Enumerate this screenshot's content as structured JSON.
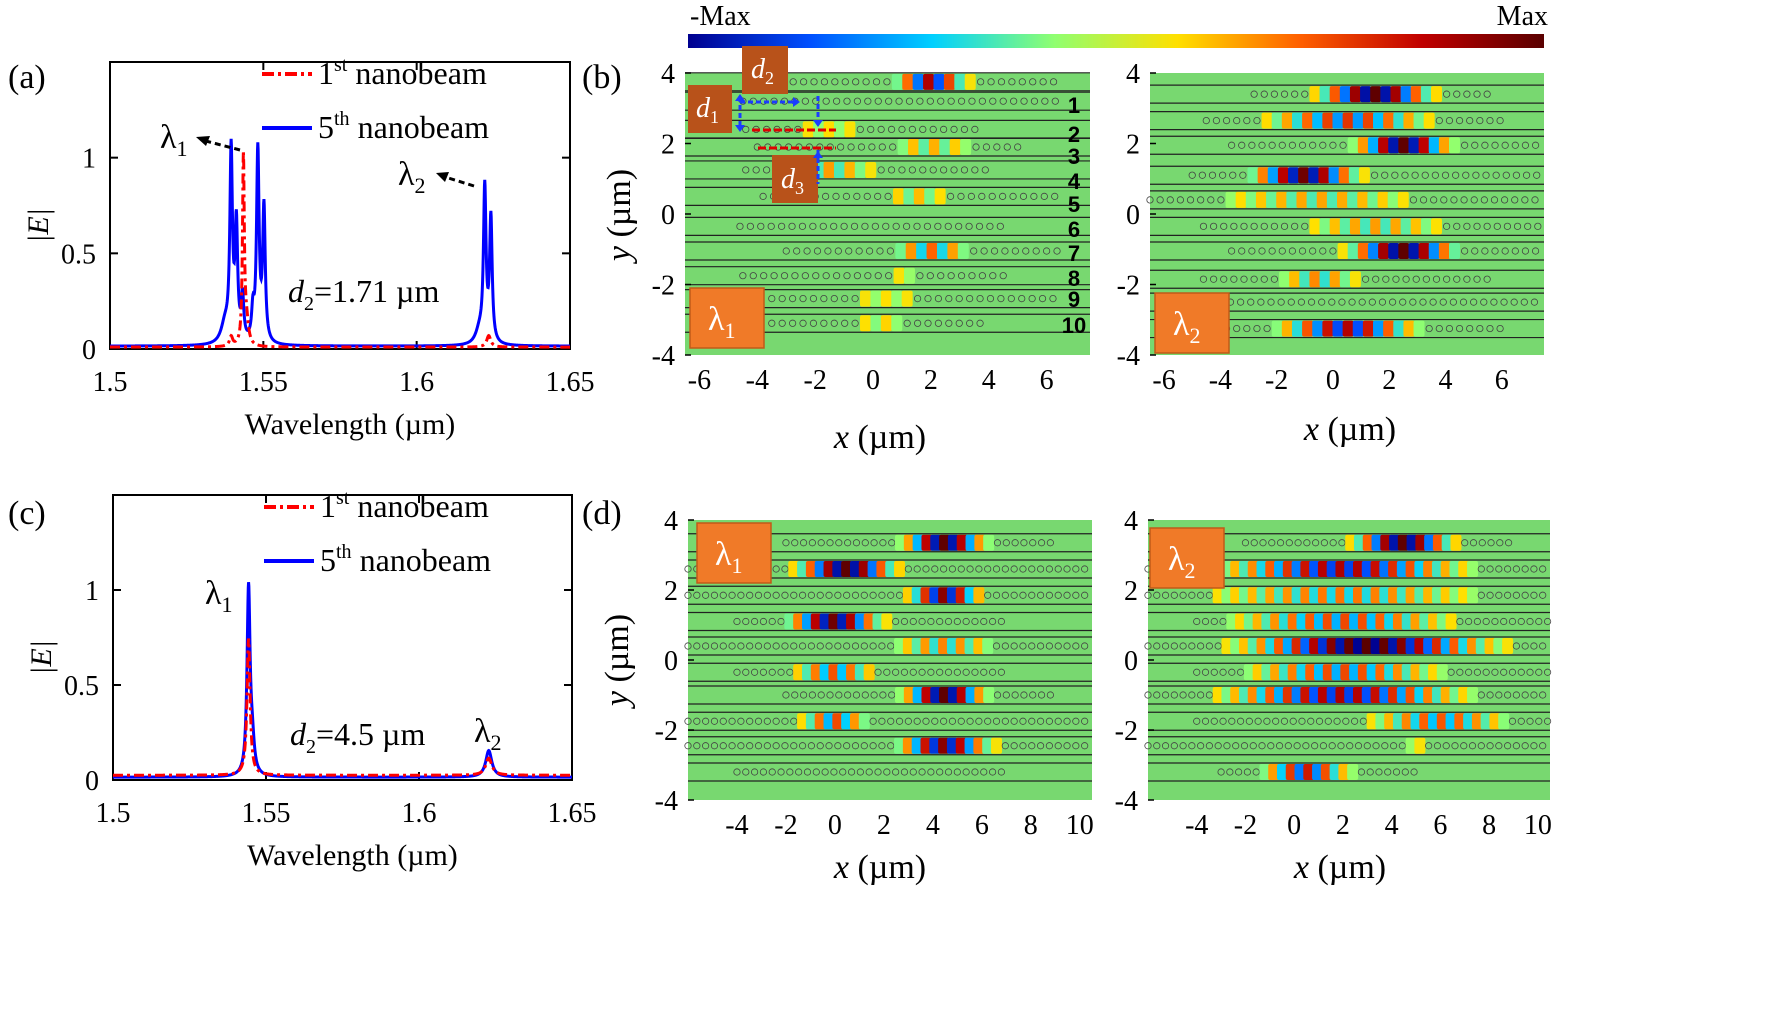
{
  "figure": {
    "colorbar": {
      "min_label": "-Max",
      "max_label": "Max",
      "colors": [
        "#00008f",
        "#0050ff",
        "#00d0ff",
        "#90ff70",
        "#ffe000",
        "#ff6000",
        "#c00000",
        "#5a0000"
      ]
    },
    "colors": {
      "red": "#ff0000",
      "blue": "#0000ff",
      "field_bg": "#78d870",
      "label_box": "#f07a28",
      "label_box_dark": "#b8521a"
    },
    "panels": {
      "a": {
        "label": "(a)"
      },
      "b": {
        "label": "(b)",
        "x_label": "x",
        "x_unit": "(µm)",
        "y_label": "y",
        "y_unit": "(µm)",
        "nanobeam_numbers": [
          "1",
          "2",
          "3",
          "4",
          "5",
          "6",
          "7",
          "8",
          "9",
          "10"
        ],
        "d1": "d",
        "d1_sub": "1",
        "d2": "d",
        "d2_sub": "2",
        "d3": "d",
        "d3_sub": "3"
      },
      "c": {
        "label": "(c)"
      },
      "d": {
        "label": "(d)",
        "x_label": "x",
        "x_unit": "(µm)",
        "y_label": "y",
        "y_unit": "(µm)"
      }
    },
    "lambda": {
      "symbol": "λ",
      "sub1": "1",
      "sub2": "2"
    }
  },
  "chart_data": [
    {
      "id": "a",
      "type": "line",
      "xlabel": "Wavelength (µm)",
      "ylabel": "|E|",
      "xlim": [
        1.5,
        1.65
      ],
      "ylim": [
        0,
        1.5
      ],
      "xticks": [
        1.5,
        1.55,
        1.6,
        1.65
      ],
      "xtick_labels": [
        "1.5",
        "1.55",
        "1.6",
        "1.65"
      ],
      "yticks": [
        0,
        0.5,
        1
      ],
      "ytick_labels": [
        "0",
        "0.5",
        "1"
      ],
      "legend": [
        {
          "pre": "1",
          "sup": "st",
          "post": " nanobeam",
          "color": "red",
          "style": "dash-dot"
        },
        {
          "pre": "5",
          "sup": "th",
          "post": " nanobeam",
          "color": "blue",
          "style": "solid"
        }
      ],
      "annotation": {
        "var": "d",
        "sub": "2",
        "text": "=1.71 µm"
      },
      "peak_labels": [
        "λ1",
        "λ2"
      ],
      "baseline": {
        "red": 0.01,
        "blue": 0.015
      },
      "series": [
        {
          "name": "1st nanobeam",
          "peaks": [
            {
              "x": 1.5395,
              "h": 0.05,
              "w": 0.0006
            },
            {
              "x": 1.5435,
              "h": 0.98,
              "w": 0.00035
            },
            {
              "x": 1.5445,
              "h": 0.12,
              "w": 0.0008
            },
            {
              "x": 1.6235,
              "h": 0.06,
              "w": 0.0008
            }
          ]
        },
        {
          "name": "5th nanobeam",
          "peaks": [
            {
              "x": 1.5395,
              "h": 0.99,
              "w": 0.0005
            },
            {
              "x": 1.5412,
              "h": 0.6,
              "w": 0.0005
            },
            {
              "x": 1.5432,
              "h": 0.23,
              "w": 0.0005
            },
            {
              "x": 1.5482,
              "h": 1.0,
              "w": 0.0005
            },
            {
              "x": 1.5502,
              "h": 0.7,
              "w": 0.0005
            },
            {
              "x": 1.5466,
              "h": 0.15,
              "w": 0.0005
            },
            {
              "x": 1.5375,
              "h": 0.1,
              "w": 0.0015
            },
            {
              "x": 1.6222,
              "h": 0.8,
              "w": 0.0005
            },
            {
              "x": 1.6242,
              "h": 0.65,
              "w": 0.0005
            },
            {
              "x": 1.6205,
              "h": 0.07,
              "w": 0.0015
            }
          ]
        }
      ]
    },
    {
      "id": "c",
      "type": "line",
      "xlabel": "Wavelength (µm)",
      "ylabel": "|E|",
      "xlim": [
        1.5,
        1.65
      ],
      "ylim": [
        0,
        1.5
      ],
      "xticks": [
        1.5,
        1.55,
        1.6,
        1.65
      ],
      "xtick_labels": [
        "1.5",
        "1.55",
        "1.6",
        "1.65"
      ],
      "yticks": [
        0,
        0.5,
        1
      ],
      "ytick_labels": [
        "0",
        "0.5",
        "1"
      ],
      "legend": [
        {
          "pre": "1",
          "sup": "st",
          "post": " nanobeam",
          "color": "red",
          "style": "dash-dot"
        },
        {
          "pre": "5",
          "sup": "th",
          "post": " nanobeam",
          "color": "blue",
          "style": "solid"
        }
      ],
      "annotation": {
        "var": "d",
        "sub": "2",
        "text": "=4.5 µm"
      },
      "peak_labels": [
        "λ1",
        "λ2"
      ],
      "baseline": {
        "red": 0.025,
        "blue": 0.015
      },
      "series": [
        {
          "name": "1st nanobeam",
          "peaks": [
            {
              "x": 1.5443,
              "h": 0.72,
              "w": 0.0006
            },
            {
              "x": 1.6228,
              "h": 0.09,
              "w": 0.0012
            }
          ]
        },
        {
          "name": "5th nanobeam",
          "peaks": [
            {
              "x": 1.5443,
              "h": 0.98,
              "w": 0.0006
            },
            {
              "x": 1.5455,
              "h": 0.15,
              "w": 0.0008
            },
            {
              "x": 1.6228,
              "h": 0.14,
              "w": 0.0012
            }
          ]
        }
      ]
    },
    {
      "id": "b",
      "type": "heatmap",
      "xlabel": "x (µm)",
      "ylabel": "y (µm)",
      "maps": [
        {
          "lambda": "λ1",
          "xlim": [
            -6.5,
            7.5
          ],
          "ylim": [
            -4,
            4
          ],
          "xticks": [
            -6,
            -4,
            -2,
            0,
            2,
            4,
            6
          ],
          "yticks": [
            4,
            2,
            0,
            -2,
            -4
          ],
          "rows": [
            {
              "y": 3.75,
              "ext": [
                -4.2,
                6.6
              ],
              "c": 2.0,
              "s": 1.0,
              "a": 1.0
            },
            {
              "y": 3.2,
              "ext": [
                -4.5,
                6.5
              ],
              "c": 1.5,
              "s": 2.0,
              "a": 0.2
            },
            {
              "y": 2.4,
              "ext": [
                -4.4,
                3.6
              ],
              "c": -1.5,
              "s": 2.0,
              "a": 0.15
            },
            {
              "y": 1.9,
              "ext": [
                -4.0,
                5.0
              ],
              "c": 2.0,
              "s": 1.5,
              "a": 0.5
            },
            {
              "y": 1.25,
              "ext": [
                -4.4,
                4.2
              ],
              "c": -1.5,
              "s": 1.5,
              "a": 0.3
            },
            {
              "y": 0.5,
              "ext": [
                -3.8,
                6.6
              ],
              "c": 1.5,
              "s": 1.2,
              "a": 0.35
            },
            {
              "y": -0.35,
              "ext": [
                -4.6,
                4.5
              ],
              "c": -0.5,
              "s": 1.8,
              "a": 0.35
            },
            {
              "y": -1.05,
              "ext": [
                -3.0,
                6.5
              ],
              "c": 2.0,
              "s": 1.2,
              "a": 0.45
            },
            {
              "y": -1.75,
              "ext": [
                -4.5,
                4.5
              ],
              "c": 1.0,
              "s": 1.5,
              "a": 0.2
            },
            {
              "y": -2.4,
              "ext": [
                -3.5,
                6.5
              ],
              "c": 0.5,
              "s": 2.0,
              "a": 0.15
            },
            {
              "y": -3.1,
              "ext": [
                -3.5,
                4.0
              ],
              "c": 0.3,
              "s": 1.2,
              "a": 1.0
            }
          ]
        },
        {
          "lambda": "λ2",
          "xlim": [
            -6.5,
            7.5
          ],
          "ylim": [
            -4,
            4
          ],
          "xticks": [
            -6,
            -4,
            -2,
            0,
            2,
            4,
            6
          ],
          "yticks": [
            4,
            2,
            0,
            -2,
            -4
          ],
          "rows": [
            {
              "y": 3.4,
              "ext": [
                -2.8,
                5.8
              ],
              "c": 1.5,
              "s": 1.6,
              "a": 1.0
            },
            {
              "y": 2.65,
              "ext": [
                -4.5,
                6.0
              ],
              "c": 0.5,
              "s": 2.5,
              "a": 0.6
            },
            {
              "y": 1.95,
              "ext": [
                -3.6,
                7.5
              ],
              "c": 2.5,
              "s": 1.3,
              "a": 1.0
            },
            {
              "y": 1.1,
              "ext": [
                -5.0,
                7.5
              ],
              "c": -1.0,
              "s": 1.5,
              "a": 1.0
            },
            {
              "y": 0.4,
              "ext": [
                -6.5,
                7.5
              ],
              "c": -0.5,
              "s": 3.5,
              "a": 0.55
            },
            {
              "y": -0.35,
              "ext": [
                -4.6,
                7.5
              ],
              "c": 1.5,
              "s": 2.5,
              "a": 0.3
            },
            {
              "y": -1.05,
              "ext": [
                -3.6,
                7.5
              ],
              "c": 2.5,
              "s": 1.5,
              "a": 1.0
            },
            {
              "y": -1.85,
              "ext": [
                -4.6,
                5.5
              ],
              "c": -0.5,
              "s": 1.3,
              "a": 1.0
            },
            {
              "y": -2.5,
              "ext": [
                -4.0,
                7.5
              ],
              "c": 0.5,
              "s": 3.0,
              "a": 0.5
            },
            {
              "y": -3.25,
              "ext": [
                -4.5,
                6.0
              ],
              "c": 0.5,
              "s": 2.0,
              "a": 0.8
            }
          ]
        }
      ]
    },
    {
      "id": "d",
      "type": "heatmap",
      "xlabel": "x (µm)",
      "ylabel": "y (µm)",
      "maps": [
        {
          "lambda": "λ1",
          "xlim": [
            -6.0,
            10.5
          ],
          "ylim": [
            -4,
            4
          ],
          "xticks": [
            -4,
            -2,
            0,
            2,
            4,
            6,
            8,
            10
          ],
          "yticks": [
            4,
            2,
            0,
            -2,
            -4
          ],
          "rows": [
            {
              "y": 3.35,
              "ext": [
                -2.0,
                9.0
              ],
              "c": 4.5,
              "s": 1.3,
              "a": 1.0
            },
            {
              "y": 2.6,
              "ext": [
                -6.0,
                10.5
              ],
              "c": 0.5,
              "s": 1.6,
              "a": 1.0
            },
            {
              "y": 1.85,
              "ext": [
                -6.0,
                10.5
              ],
              "c": 4.5,
              "s": 1.2,
              "a": 1.0
            },
            {
              "y": 1.1,
              "ext": [
                -4.0,
                7.0
              ],
              "c": 0.0,
              "s": 1.5,
              "a": 1.0
            },
            {
              "y": 0.4,
              "ext": [
                -6.0,
                10.5
              ],
              "c": 4.5,
              "s": 2.0,
              "a": 0.4
            },
            {
              "y": -0.35,
              "ext": [
                -4.0,
                7.0
              ],
              "c": 0.0,
              "s": 1.5,
              "a": 0.5
            },
            {
              "y": -1.0,
              "ext": [
                -2.0,
                9.0
              ],
              "c": 4.5,
              "s": 1.3,
              "a": 1.0
            },
            {
              "y": -1.75,
              "ext": [
                -6.0,
                10.5
              ],
              "c": 0.0,
              "s": 1.2,
              "a": 1.0
            },
            {
              "y": -2.45,
              "ext": [
                -6.0,
                10.5
              ],
              "c": 4.5,
              "s": 1.5,
              "a": 1.0
            },
            {
              "y": -3.2,
              "ext": [
                -4.0,
                7.0
              ],
              "c": 0.5,
              "s": 1.2,
              "a": 1.0
            }
          ]
        },
        {
          "lambda": "λ2",
          "xlim": [
            -6.0,
            10.5
          ],
          "ylim": [
            -4,
            4
          ],
          "xticks": [
            -4,
            -2,
            0,
            2,
            4,
            6,
            8,
            10
          ],
          "yticks": [
            4,
            2,
            0,
            -2,
            -4
          ],
          "rows": [
            {
              "y": 3.35,
              "ext": [
                -2.0,
                9.0
              ],
              "c": 4.5,
              "s": 1.6,
              "a": 1.0
            },
            {
              "y": 2.6,
              "ext": [
                -6.0,
                10.5
              ],
              "c": 2.0,
              "s": 4.0,
              "a": 1.0
            },
            {
              "y": 1.85,
              "ext": [
                -6.0,
                10.5
              ],
              "c": 2.0,
              "s": 5.0,
              "a": 0.5
            },
            {
              "y": 1.1,
              "ext": [
                -4.0,
                10.5
              ],
              "c": 2.0,
              "s": 4.0,
              "a": 1.0
            },
            {
              "y": 0.4,
              "ext": [
                -6.0,
                10.5
              ],
              "c": 3.0,
              "s": 4.0,
              "a": 1.0
            },
            {
              "y": -0.35,
              "ext": [
                -4.0,
                10.5
              ],
              "c": 2.0,
              "s": 3.5,
              "a": 1.0
            },
            {
              "y": -1.0,
              "ext": [
                -6.0,
                10.5
              ],
              "c": 2.0,
              "s": 4.0,
              "a": 1.0
            },
            {
              "y": -1.75,
              "ext": [
                -4.0,
                10.5
              ],
              "c": 6.0,
              "s": 2.5,
              "a": 0.6
            },
            {
              "y": -2.45,
              "ext": [
                -6.0,
                10.5
              ],
              "c": 5.0,
              "s": 3.0,
              "a": 0.7
            },
            {
              "y": -3.2,
              "ext": [
                -3.0,
                5.0
              ],
              "c": 0.5,
              "s": 1.5,
              "a": 1.0
            }
          ]
        }
      ]
    }
  ]
}
